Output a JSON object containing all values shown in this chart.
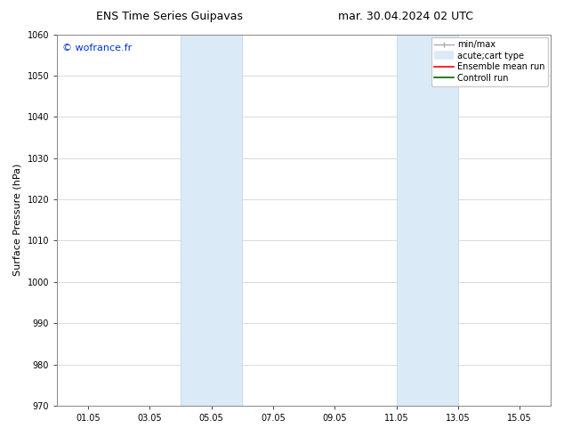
{
  "title_left": "ENS Time Series Guipavas",
  "title_right": "mar. 30.04.2024 02 UTC",
  "ylabel": "Surface Pressure (hPa)",
  "ylim": [
    970,
    1060
  ],
  "yticks": [
    970,
    980,
    990,
    1000,
    1010,
    1020,
    1030,
    1040,
    1050,
    1060
  ],
  "xtick_labels": [
    "01.05",
    "03.05",
    "05.05",
    "07.05",
    "09.05",
    "11.05",
    "13.05",
    "15.05"
  ],
  "xtick_positions": [
    1,
    3,
    5,
    7,
    9,
    11,
    13,
    15
  ],
  "xlim": [
    0,
    16
  ],
  "shaded_regions": [
    {
      "xmin": 4.0,
      "xmax": 6.0
    },
    {
      "xmin": 11.0,
      "xmax": 13.0
    }
  ],
  "shade_color": "#daeaf7",
  "shade_edge_color": "#b8d4e8",
  "watermark_text": "© wofrance.fr",
  "watermark_color": "#0033cc",
  "watermark_fontsize": 8,
  "bg_color": "#ffffff",
  "axes_bg_color": "#ffffff",
  "grid_color": "#cccccc",
  "title_fontsize": 9,
  "axis_label_fontsize": 8,
  "tick_fontsize": 7,
  "legend_fontsize": 7
}
